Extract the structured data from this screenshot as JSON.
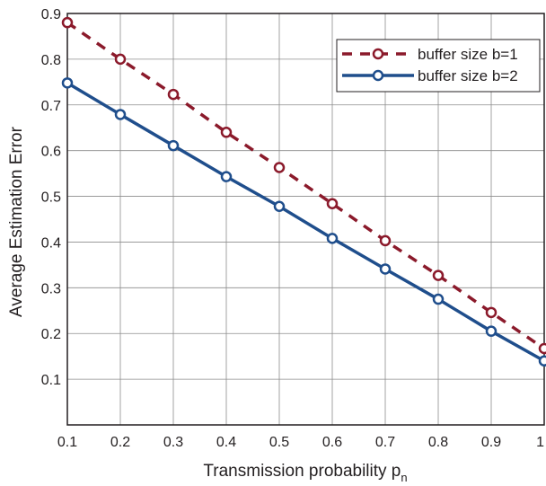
{
  "chart_data": {
    "type": "line",
    "title": "",
    "xlabel": "Transmission probability p",
    "xlabel_subscript": "n",
    "ylabel": "Average Estimation Error",
    "xlim": [
      0.1,
      1.0
    ],
    "ylim": [
      0.0,
      0.9
    ],
    "x": [
      0.1,
      0.2,
      0.3,
      0.4,
      0.5,
      0.6,
      0.7,
      0.8,
      0.9,
      1.0
    ],
    "xtick_labels": [
      "0.1",
      "0.2",
      "0.3",
      "0.4",
      "0.5",
      "0.6",
      "0.7",
      "0.8",
      "0.9",
      "1"
    ],
    "ytick_values": [
      0.1,
      0.2,
      0.3,
      0.4,
      0.5,
      0.6,
      0.7,
      0.8,
      0.9
    ],
    "ytick_labels": [
      "0.1",
      "0.2",
      "0.3",
      "0.4",
      "0.5",
      "0.6",
      "0.7",
      "0.8",
      "0.9"
    ],
    "grid": true,
    "legend_position": "top-right",
    "series": [
      {
        "name": "buffer size b=1",
        "color": "#8b1a2b",
        "line_style": "dashed",
        "marker": "open-circle",
        "values": [
          0.88,
          0.8,
          0.723,
          0.64,
          0.563,
          0.484,
          0.403,
          0.327,
          0.246,
          0.167
        ]
      },
      {
        "name": "buffer size b=2",
        "color": "#1f4e8c",
        "line_style": "solid",
        "marker": "open-circle",
        "values": [
          0.748,
          0.679,
          0.611,
          0.543,
          0.478,
          0.408,
          0.341,
          0.275,
          0.205,
          0.14
        ]
      }
    ]
  }
}
